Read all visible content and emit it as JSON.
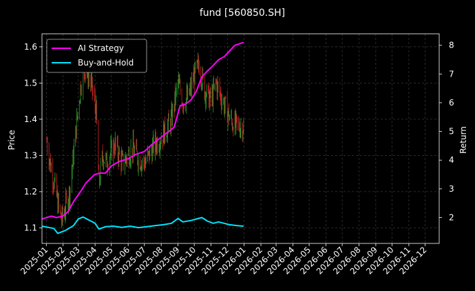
{
  "chart_data": {
    "type": "line",
    "title": "fund [560850.SH]",
    "ylabel_left": "Price",
    "ylabel_right": "Return",
    "xlabel": "",
    "left_ylim": [
      1.057,
      1.636
    ],
    "right_ylim": [
      1.1,
      8.4
    ],
    "x_range": [
      "2024-12-24",
      "2026-12-27"
    ],
    "left_yticks": [
      "1.1",
      "1.2",
      "1.3",
      "1.4",
      "1.5",
      "1.6"
    ],
    "right_yticks": [
      "2",
      "3",
      "4",
      "5",
      "6",
      "7",
      "8"
    ],
    "xticks": [
      "2025-01",
      "2025-02",
      "2025-03",
      "2025-04",
      "2025-05",
      "2025-06",
      "2025-07",
      "2025-08",
      "2025-09",
      "2025-10",
      "2025-11",
      "2025-12",
      "2026-01",
      "2026-02",
      "2026-03",
      "2026-04",
      "2026-05",
      "2026-06",
      "2026-07",
      "2026-08",
      "2026-09",
      "2026-10",
      "2026-11",
      "2026-12"
    ],
    "grid": true,
    "legend_position": "top-left",
    "colors": {
      "up": "#2ca02c",
      "down": "#d62728",
      "strategy": "#ff00ff",
      "buyhold": "#00e5ff"
    },
    "price_anchors": [
      [
        "2025-01-02",
        1.34
      ],
      [
        "2025-01-08",
        1.28
      ],
      [
        "2025-01-15",
        1.23
      ],
      [
        "2025-01-22",
        1.17
      ],
      [
        "2025-01-29",
        1.12
      ],
      [
        "2025-02-06",
        1.16
      ],
      [
        "2025-02-13",
        1.2
      ],
      [
        "2025-02-20",
        1.3
      ],
      [
        "2025-02-28",
        1.42
      ],
      [
        "2025-03-06",
        1.5
      ],
      [
        "2025-03-13",
        1.54
      ],
      [
        "2025-03-20",
        1.52
      ],
      [
        "2025-03-27",
        1.48
      ],
      [
        "2025-04-03",
        1.42
      ],
      [
        "2025-04-08",
        1.22
      ],
      [
        "2025-04-15",
        1.3
      ],
      [
        "2025-04-22",
        1.28
      ],
      [
        "2025-05-01",
        1.31
      ],
      [
        "2025-05-08",
        1.33
      ],
      [
        "2025-05-15",
        1.3
      ],
      [
        "2025-05-22",
        1.28
      ],
      [
        "2025-06-01",
        1.3
      ],
      [
        "2025-06-10",
        1.32
      ],
      [
        "2025-06-20",
        1.29
      ],
      [
        "2025-07-01",
        1.28
      ],
      [
        "2025-07-10",
        1.3
      ],
      [
        "2025-07-20",
        1.33
      ],
      [
        "2025-08-01",
        1.35
      ],
      [
        "2025-08-10",
        1.37
      ],
      [
        "2025-08-20",
        1.4
      ],
      [
        "2025-09-01",
        1.5
      ],
      [
        "2025-09-10",
        1.45
      ],
      [
        "2025-09-20",
        1.46
      ],
      [
        "2025-10-01",
        1.52
      ],
      [
        "2025-10-10",
        1.55
      ],
      [
        "2025-10-20",
        1.48
      ],
      [
        "2025-11-01",
        1.45
      ],
      [
        "2025-11-10",
        1.5
      ],
      [
        "2025-11-20",
        1.46
      ],
      [
        "2025-12-01",
        1.42
      ],
      [
        "2025-12-10",
        1.39
      ],
      [
        "2025-12-20",
        1.38
      ]
    ],
    "series": [
      {
        "name": "AI Strategy",
        "points": [
          [
            "2024-12-24",
            1.95
          ],
          [
            "2025-01-10",
            2.05
          ],
          [
            "2025-01-20",
            2.0
          ],
          [
            "2025-01-31",
            2.05
          ],
          [
            "2025-02-10",
            2.2
          ],
          [
            "2025-02-20",
            2.55
          ],
          [
            "2025-03-05",
            2.9
          ],
          [
            "2025-03-15",
            3.2
          ],
          [
            "2025-03-31",
            3.5
          ],
          [
            "2025-04-10",
            3.55
          ],
          [
            "2025-04-20",
            3.55
          ],
          [
            "2025-05-01",
            3.8
          ],
          [
            "2025-05-15",
            3.95
          ],
          [
            "2025-06-01",
            4.05
          ],
          [
            "2025-06-15",
            4.2
          ],
          [
            "2025-07-01",
            4.3
          ],
          [
            "2025-07-15",
            4.55
          ],
          [
            "2025-08-01",
            4.8
          ],
          [
            "2025-08-15",
            5.0
          ],
          [
            "2025-08-25",
            5.15
          ],
          [
            "2025-09-05",
            5.9
          ],
          [
            "2025-09-15",
            5.95
          ],
          [
            "2025-09-25",
            6.1
          ],
          [
            "2025-10-05",
            6.4
          ],
          [
            "2025-10-15",
            6.9
          ],
          [
            "2025-10-25",
            7.1
          ],
          [
            "2025-11-05",
            7.3
          ],
          [
            "2025-11-15",
            7.5
          ],
          [
            "2025-11-25",
            7.6
          ],
          [
            "2025-12-05",
            7.8
          ],
          [
            "2025-12-15",
            8.0
          ],
          [
            "2025-12-31",
            8.1
          ]
        ]
      },
      {
        "name": "Buy-and-Hold",
        "points": [
          [
            "2024-12-24",
            1.7
          ],
          [
            "2025-01-15",
            1.62
          ],
          [
            "2025-01-22",
            1.45
          ],
          [
            "2025-02-05",
            1.55
          ],
          [
            "2025-02-20",
            1.72
          ],
          [
            "2025-03-01",
            1.95
          ],
          [
            "2025-03-10",
            2.02
          ],
          [
            "2025-03-20",
            1.92
          ],
          [
            "2025-04-01",
            1.8
          ],
          [
            "2025-04-08",
            1.6
          ],
          [
            "2025-04-20",
            1.68
          ],
          [
            "2025-05-05",
            1.7
          ],
          [
            "2025-05-20",
            1.66
          ],
          [
            "2025-06-05",
            1.7
          ],
          [
            "2025-06-20",
            1.65
          ],
          [
            "2025-07-05",
            1.68
          ],
          [
            "2025-07-20",
            1.72
          ],
          [
            "2025-08-05",
            1.75
          ],
          [
            "2025-08-20",
            1.8
          ],
          [
            "2025-09-01",
            1.97
          ],
          [
            "2025-09-10",
            1.85
          ],
          [
            "2025-09-25",
            1.9
          ],
          [
            "2025-10-05",
            1.95
          ],
          [
            "2025-10-15",
            2.0
          ],
          [
            "2025-10-25",
            1.88
          ],
          [
            "2025-11-05",
            1.8
          ],
          [
            "2025-11-15",
            1.85
          ],
          [
            "2025-11-25",
            1.8
          ],
          [
            "2025-12-05",
            1.75
          ],
          [
            "2025-12-20",
            1.72
          ],
          [
            "2025-12-31",
            1.7
          ]
        ]
      }
    ]
  }
}
